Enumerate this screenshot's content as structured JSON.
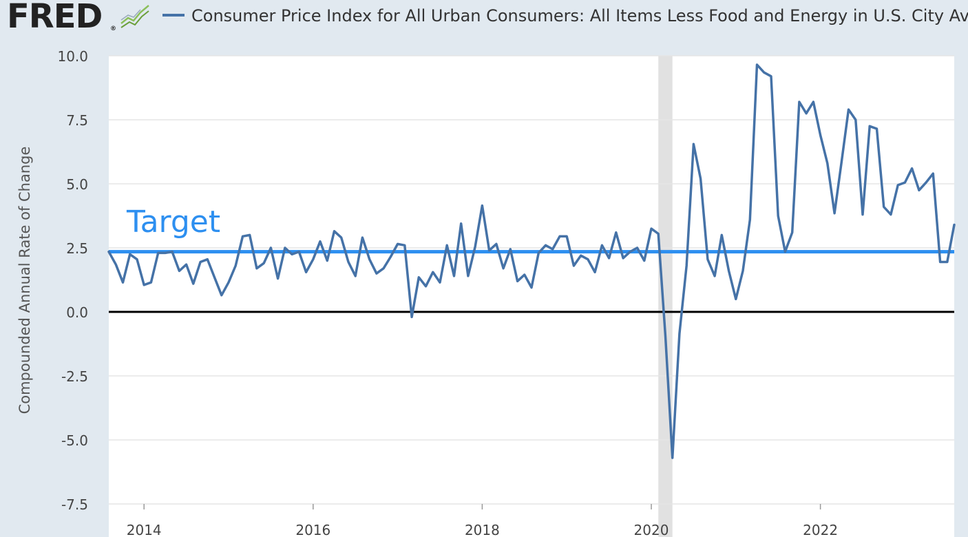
{
  "header": {
    "logo_text": "FRED",
    "logo_mark": "®",
    "logo_icon": "fred-chart-icon"
  },
  "chart_data": {
    "type": "line",
    "title": "Consumer Price Index for All Urban Consumers: All Items Less Food and Energy in U.S. City Average",
    "ylabel": "Compounded Annual Rate of Change",
    "xlabel": "",
    "ylim": [
      -7.5,
      10.0
    ],
    "xlim": [
      2013.583,
      2023.583
    ],
    "yticks": [
      "10.0",
      "7.5",
      "5.0",
      "2.5",
      "0.0",
      "-2.5",
      "-5.0",
      "-7.5"
    ],
    "ytick_values": [
      10.0,
      7.5,
      5.0,
      2.5,
      0.0,
      -2.5,
      -5.0,
      -7.5
    ],
    "xticks": [
      "2014",
      "2016",
      "2018",
      "2020",
      "2022"
    ],
    "xtick_values": [
      2014,
      2016,
      2018,
      2020,
      2022
    ],
    "grid": true,
    "recession": {
      "start": 2020.083,
      "end": 2020.25
    },
    "reference_lines": [
      {
        "name": "Target",
        "value": 2.35,
        "color": "#2d8ff0"
      },
      {
        "name": "zero",
        "value": 0.0,
        "color": "#000000"
      }
    ],
    "annotation": {
      "text": "Target",
      "color": "#2d8ff0"
    },
    "series": [
      {
        "name": "Consumer Price Index for All Urban Consumers: All Items Less Food and Energy in U.S. City Average",
        "color": "#4572a7",
        "start_year": 2013,
        "start_month": 8,
        "values": [
          2.35,
          1.85,
          1.15,
          2.25,
          2.05,
          1.05,
          1.15,
          2.3,
          2.3,
          2.35,
          1.6,
          1.85,
          1.1,
          1.95,
          2.05,
          1.35,
          0.65,
          1.15,
          1.8,
          2.95,
          3.0,
          1.7,
          1.9,
          2.5,
          1.3,
          2.5,
          2.25,
          2.35,
          1.55,
          2.05,
          2.75,
          2.0,
          3.15,
          2.9,
          1.95,
          1.4,
          2.9,
          2.05,
          1.5,
          1.7,
          2.15,
          2.65,
          2.6,
          -0.2,
          1.35,
          1.0,
          1.55,
          1.15,
          2.6,
          1.4,
          3.45,
          1.4,
          2.55,
          4.15,
          2.4,
          2.65,
          1.7,
          2.45,
          1.2,
          1.45,
          0.95,
          2.3,
          2.6,
          2.45,
          2.95,
          2.95,
          1.8,
          2.2,
          2.05,
          1.55,
          2.6,
          2.1,
          3.1,
          2.1,
          2.35,
          2.5,
          2.0,
          3.25,
          3.05,
          -0.95,
          -5.7,
          -0.85,
          1.8,
          6.55,
          5.2,
          2.05,
          1.4,
          3.0,
          1.6,
          0.5,
          1.6,
          3.6,
          9.65,
          9.35,
          9.2,
          3.75,
          2.35,
          3.1,
          8.2,
          7.75,
          8.2,
          6.9,
          5.8,
          3.85,
          5.85,
          7.9,
          7.5,
          3.8,
          7.25,
          7.15,
          4.1,
          3.8,
          4.95,
          5.05,
          5.6,
          4.75,
          5.05,
          5.4,
          1.95,
          1.95,
          3.4
        ]
      }
    ]
  }
}
